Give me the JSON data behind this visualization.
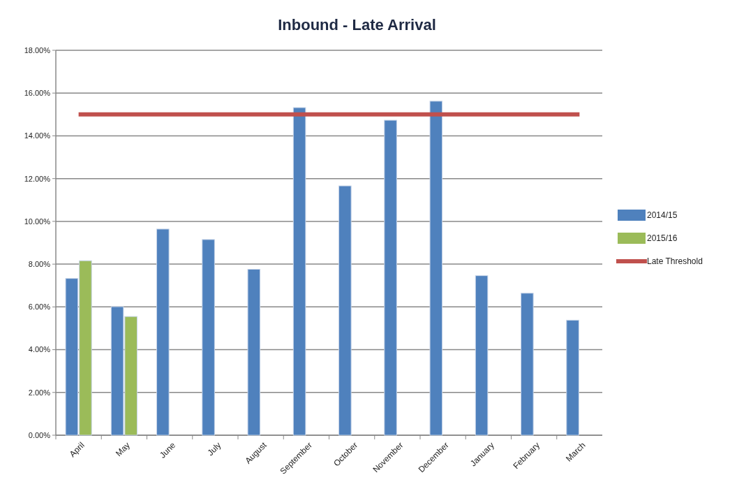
{
  "chart_data": {
    "type": "bar",
    "title": "Inbound - Late Arrival",
    "categories": [
      "April",
      "May",
      "June",
      "July",
      "August",
      "September",
      "October",
      "November",
      "December",
      "January",
      "February",
      "March"
    ],
    "series": [
      {
        "name": "2014/15",
        "color": "#4f81bd",
        "values": [
          7.33,
          6.01,
          9.64,
          9.15,
          7.76,
          15.32,
          11.66,
          14.73,
          15.62,
          7.46,
          6.64,
          5.38
        ]
      },
      {
        "name": "2015/16",
        "color": "#9bbb59",
        "values": [
          8.16,
          5.55,
          null,
          null,
          null,
          null,
          null,
          null,
          null,
          null,
          null,
          null
        ]
      },
      {
        "name": "Late Threshold",
        "type": "line",
        "color": "#c0504d",
        "values": [
          15,
          15,
          15,
          15,
          15,
          15,
          15,
          15,
          15,
          15,
          15,
          15
        ]
      }
    ],
    "ylim": [
      0,
      18
    ],
    "yticks": [
      {
        "value": 0,
        "label": "0.00%"
      },
      {
        "value": 2,
        "label": "2.00%"
      },
      {
        "value": 4,
        "label": "4.00%"
      },
      {
        "value": 6,
        "label": "6.00%"
      },
      {
        "value": 8,
        "label": "8.00%"
      },
      {
        "value": 10,
        "label": "10.00%"
      },
      {
        "value": 12,
        "label": "12.00%"
      },
      {
        "value": 14,
        "label": "14.00%"
      },
      {
        "value": 16,
        "label": "16.00%"
      },
      {
        "value": 18,
        "label": "18.00%"
      }
    ],
    "grid": "y",
    "legend": "right"
  }
}
